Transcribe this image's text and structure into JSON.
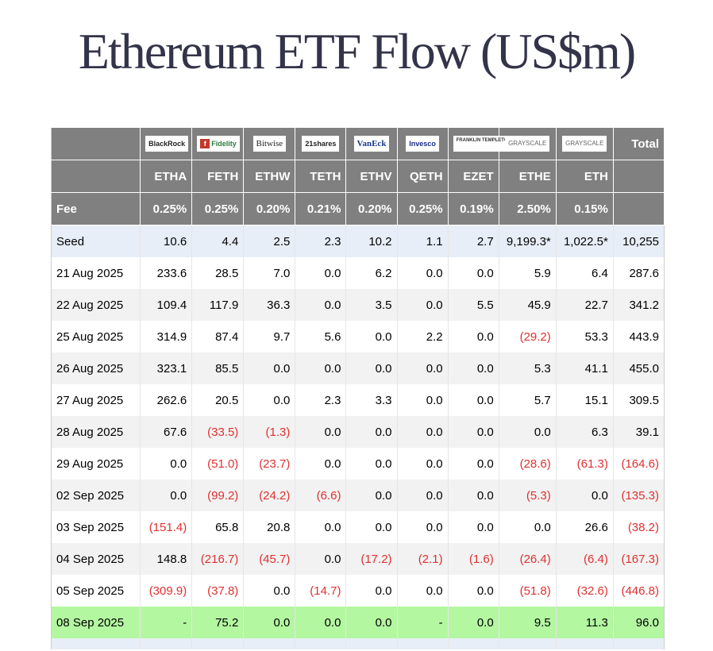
{
  "title": "Ethereum ETF Flow (US$m)",
  "header": {
    "logos": [
      "BlackRock",
      "Fidelity",
      "Bitwise",
      "21shares",
      "VanEck",
      "Invesco",
      "FRANKLIN TEMPLETON",
      "GRAYSCALE",
      "GRAYSCALE"
    ],
    "total_label": "Total",
    "tickers": [
      "ETHA",
      "FETH",
      "ETHW",
      "TETH",
      "ETHV",
      "QETH",
      "EZET",
      "ETHE",
      "ETH"
    ],
    "fee_label": "Fee",
    "fees": [
      "0.25%",
      "0.25%",
      "0.20%",
      "0.21%",
      "0.20%",
      "0.25%",
      "0.19%",
      "2.50%",
      "0.15%"
    ]
  },
  "rows": [
    {
      "label": "Seed",
      "values": [
        "10.6",
        "4.4",
        "2.5",
        "2.3",
        "10.2",
        "1.1",
        "2.7",
        "9,199.3*",
        "1,022.5*",
        "10,255"
      ]
    },
    {
      "label": "21 Aug 2025",
      "values": [
        "233.6",
        "28.5",
        "7.0",
        "0.0",
        "6.2",
        "0.0",
        "0.0",
        "5.9",
        "6.4",
        "287.6"
      ]
    },
    {
      "label": "22 Aug 2025",
      "values": [
        "109.4",
        "117.9",
        "36.3",
        "0.0",
        "3.5",
        "0.0",
        "5.5",
        "45.9",
        "22.7",
        "341.2"
      ]
    },
    {
      "label": "25 Aug 2025",
      "values": [
        "314.9",
        "87.4",
        "9.7",
        "5.6",
        "0.0",
        "2.2",
        "0.0",
        "(29.2)",
        "53.3",
        "443.9"
      ]
    },
    {
      "label": "26 Aug 2025",
      "values": [
        "323.1",
        "85.5",
        "0.0",
        "0.0",
        "0.0",
        "0.0",
        "0.0",
        "5.3",
        "41.1",
        "455.0"
      ]
    },
    {
      "label": "27 Aug 2025",
      "values": [
        "262.6",
        "20.5",
        "0.0",
        "2.3",
        "3.3",
        "0.0",
        "0.0",
        "5.7",
        "15.1",
        "309.5"
      ]
    },
    {
      "label": "28 Aug 2025",
      "values": [
        "67.6",
        "(33.5)",
        "(1.3)",
        "0.0",
        "0.0",
        "0.0",
        "0.0",
        "0.0",
        "6.3",
        "39.1"
      ]
    },
    {
      "label": "29 Aug 2025",
      "values": [
        "0.0",
        "(51.0)",
        "(23.7)",
        "0.0",
        "0.0",
        "0.0",
        "0.0",
        "(28.6)",
        "(61.3)",
        "(164.6)"
      ]
    },
    {
      "label": "02 Sep 2025",
      "values": [
        "0.0",
        "(99.2)",
        "(24.2)",
        "(6.6)",
        "0.0",
        "0.0",
        "0.0",
        "(5.3)",
        "0.0",
        "(135.3)"
      ]
    },
    {
      "label": "03 Sep 2025",
      "values": [
        "(151.4)",
        "65.8",
        "20.8",
        "0.0",
        "0.0",
        "0.0",
        "0.0",
        "0.0",
        "26.6",
        "(38.2)"
      ]
    },
    {
      "label": "04 Sep 2025",
      "values": [
        "148.8",
        "(216.7)",
        "(45.7)",
        "0.0",
        "(17.2)",
        "(2.1)",
        "(1.6)",
        "(26.4)",
        "(6.4)",
        "(167.3)"
      ]
    },
    {
      "label": "05 Sep 2025",
      "values": [
        "(309.9)",
        "(37.8)",
        "0.0",
        "(14.7)",
        "0.0",
        "0.0",
        "0.0",
        "(51.8)",
        "(32.6)",
        "(446.8)"
      ]
    },
    {
      "label": "08 Sep 2025",
      "values": [
        "-",
        "75.2",
        "0.0",
        "0.0",
        "0.0",
        "-",
        "0.0",
        "9.5",
        "11.3",
        "96.0"
      ]
    }
  ],
  "colors": {
    "header_bg": "#808080",
    "negative": "#e03030",
    "seed_bg": "#e8eef8",
    "latest_bg": "#b3f7a0",
    "title": "#33334a"
  }
}
